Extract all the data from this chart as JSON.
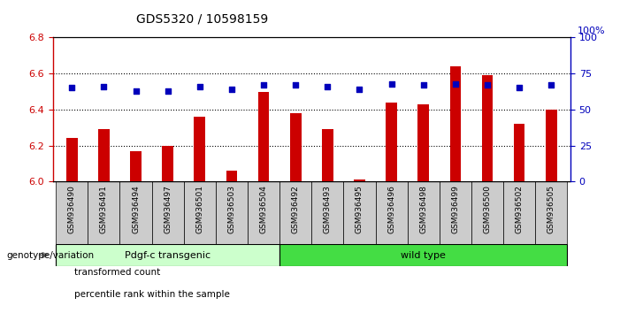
{
  "title": "GDS5320 / 10598159",
  "samples": [
    "GSM936490",
    "GSM936491",
    "GSM936494",
    "GSM936497",
    "GSM936501",
    "GSM936503",
    "GSM936504",
    "GSM936492",
    "GSM936493",
    "GSM936495",
    "GSM936496",
    "GSM936498",
    "GSM936499",
    "GSM936500",
    "GSM936502",
    "GSM936505"
  ],
  "transformed_count": [
    6.24,
    6.29,
    6.17,
    6.2,
    6.36,
    6.06,
    6.5,
    6.38,
    6.29,
    6.01,
    6.44,
    6.43,
    6.64,
    6.59,
    6.32,
    6.4
  ],
  "percentile_rank": [
    65,
    66,
    63,
    63,
    66,
    64,
    67,
    67,
    66,
    64,
    68,
    67,
    68,
    67,
    65,
    67
  ],
  "groups": [
    {
      "label": "Pdgf-c transgenic",
      "start": 0,
      "end": 7,
      "color": "#CCFFCC"
    },
    {
      "label": "wild type",
      "start": 7,
      "end": 16,
      "color": "#44DD44"
    }
  ],
  "ylim_left": [
    6.0,
    6.8
  ],
  "ylim_right": [
    0,
    100
  ],
  "yticks_left": [
    6.0,
    6.2,
    6.4,
    6.6,
    6.8
  ],
  "yticks_right": [
    0,
    25,
    50,
    75,
    100
  ],
  "bar_color": "#CC0000",
  "dot_color": "#0000BB",
  "bar_width": 0.5,
  "bg_color": "#FFFFFF",
  "plot_bg_color": "#FFFFFF",
  "tick_label_color_left": "#CC0000",
  "tick_label_color_right": "#0000BB",
  "xtick_bg_color": "#CCCCCC",
  "genotype_label": "genotype/variation",
  "legend_items": [
    {
      "label": "transformed count",
      "color": "#CC0000"
    },
    {
      "label": "percentile rank within the sample",
      "color": "#0000BB"
    }
  ]
}
